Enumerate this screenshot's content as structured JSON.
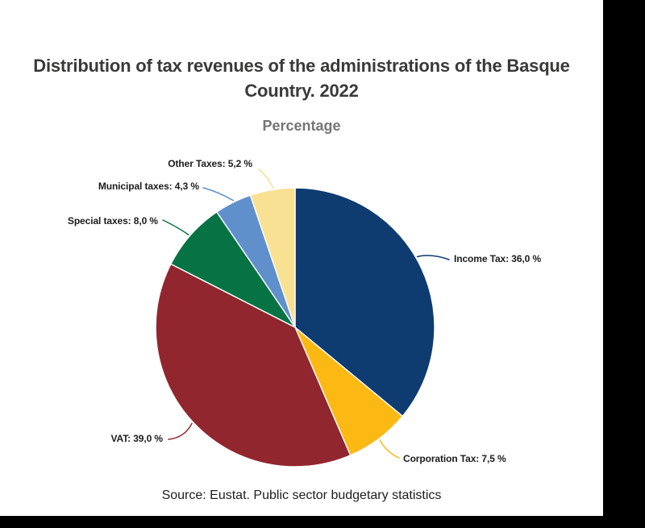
{
  "title": "Distribution of tax revenues of the administrations of the Basque Country. 2022",
  "subtitle": "Percentage",
  "source": "Source: Eustat. Public sector budgetary statistics",
  "chart_data": {
    "type": "pie",
    "title": "Distribution of tax revenues of the administrations of the Basque Country. 2022",
    "subtitle": "Percentage",
    "unit": "%",
    "start_angle": "12 o'clock, clockwise",
    "slices": [
      {
        "label": "Income Tax",
        "value": 36.0,
        "display": "Income Tax: 36,0 %",
        "color": "#0E3C71"
      },
      {
        "label": "Corporation Tax",
        "value": 7.5,
        "display": "Corporation Tax: 7,5 %",
        "color": "#FCB813"
      },
      {
        "label": "VAT",
        "value": 39.0,
        "display": "VAT: 39,0 %",
        "color": "#91262E"
      },
      {
        "label": "Special taxes",
        "value": 8.0,
        "display": "Special taxes: 8,0 %",
        "color": "#077345"
      },
      {
        "label": "Municipal taxes",
        "value": 4.3,
        "display": "Municipal taxes: 4,3 %",
        "color": "#6090CB"
      },
      {
        "label": "Other Taxes",
        "value": 5.2,
        "display": "Other Taxes: 5,2 %",
        "color": "#F9E193"
      }
    ]
  }
}
